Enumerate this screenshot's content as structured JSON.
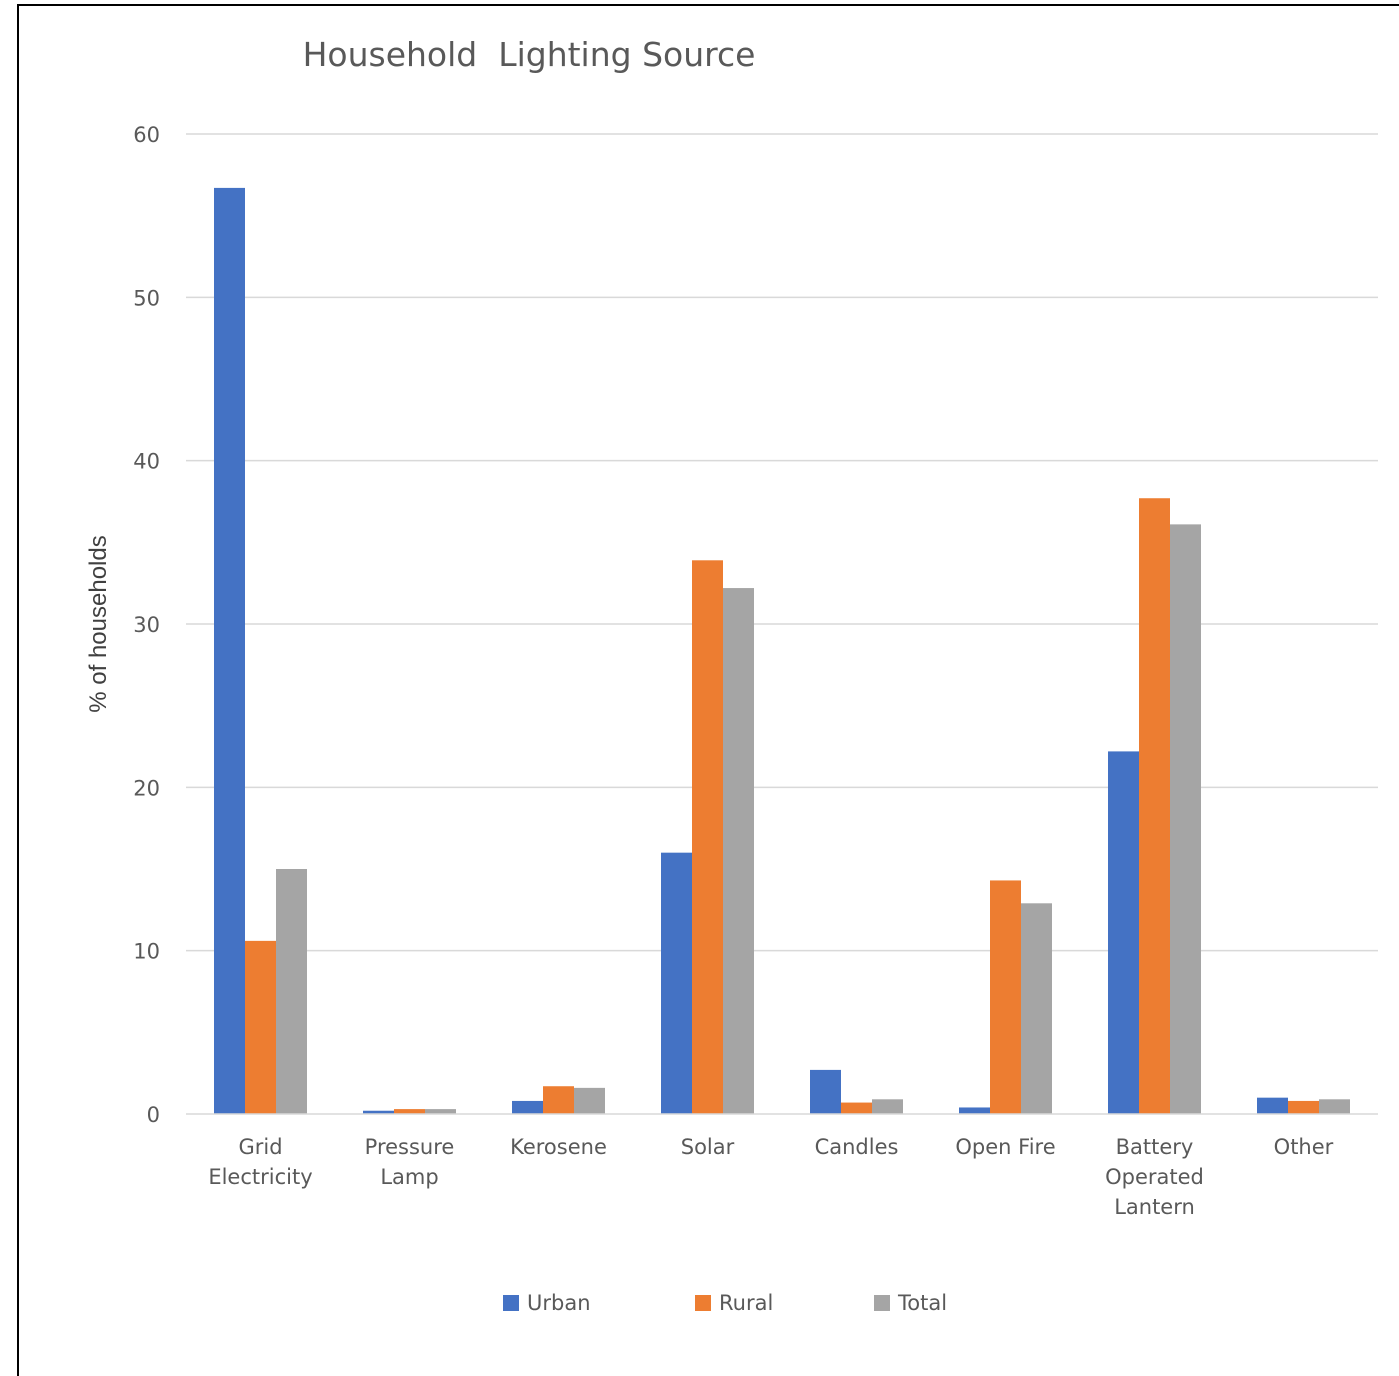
{
  "chart_data": {
    "type": "bar",
    "title": "Household  Lighting Source",
    "ylabel": "% of households",
    "xlabel": "",
    "ylim": [
      0,
      60
    ],
    "yticks": [
      0,
      10,
      20,
      30,
      40,
      50,
      60
    ],
    "grid": true,
    "legend_position": "bottom",
    "categories": [
      [
        "Grid",
        "Electricity"
      ],
      [
        "Pressure",
        "Lamp"
      ],
      [
        "Kerosene"
      ],
      [
        "Solar"
      ],
      [
        "Candles"
      ],
      [
        "Open Fire"
      ],
      [
        "Battery",
        "Operated",
        "Lantern"
      ],
      [
        "Other"
      ]
    ],
    "series": [
      {
        "name": "Urban",
        "color": "#4472C4",
        "values": [
          56.7,
          0.2,
          0.8,
          16.0,
          2.7,
          0.4,
          22.2,
          1.0
        ]
      },
      {
        "name": "Rural",
        "color": "#ED7D31",
        "values": [
          10.6,
          0.3,
          1.7,
          33.9,
          0.7,
          14.3,
          37.7,
          0.8
        ]
      },
      {
        "name": "Total",
        "color": "#A5A5A5",
        "values": [
          15.0,
          0.3,
          1.6,
          32.2,
          0.9,
          12.9,
          36.1,
          0.9
        ]
      }
    ]
  }
}
